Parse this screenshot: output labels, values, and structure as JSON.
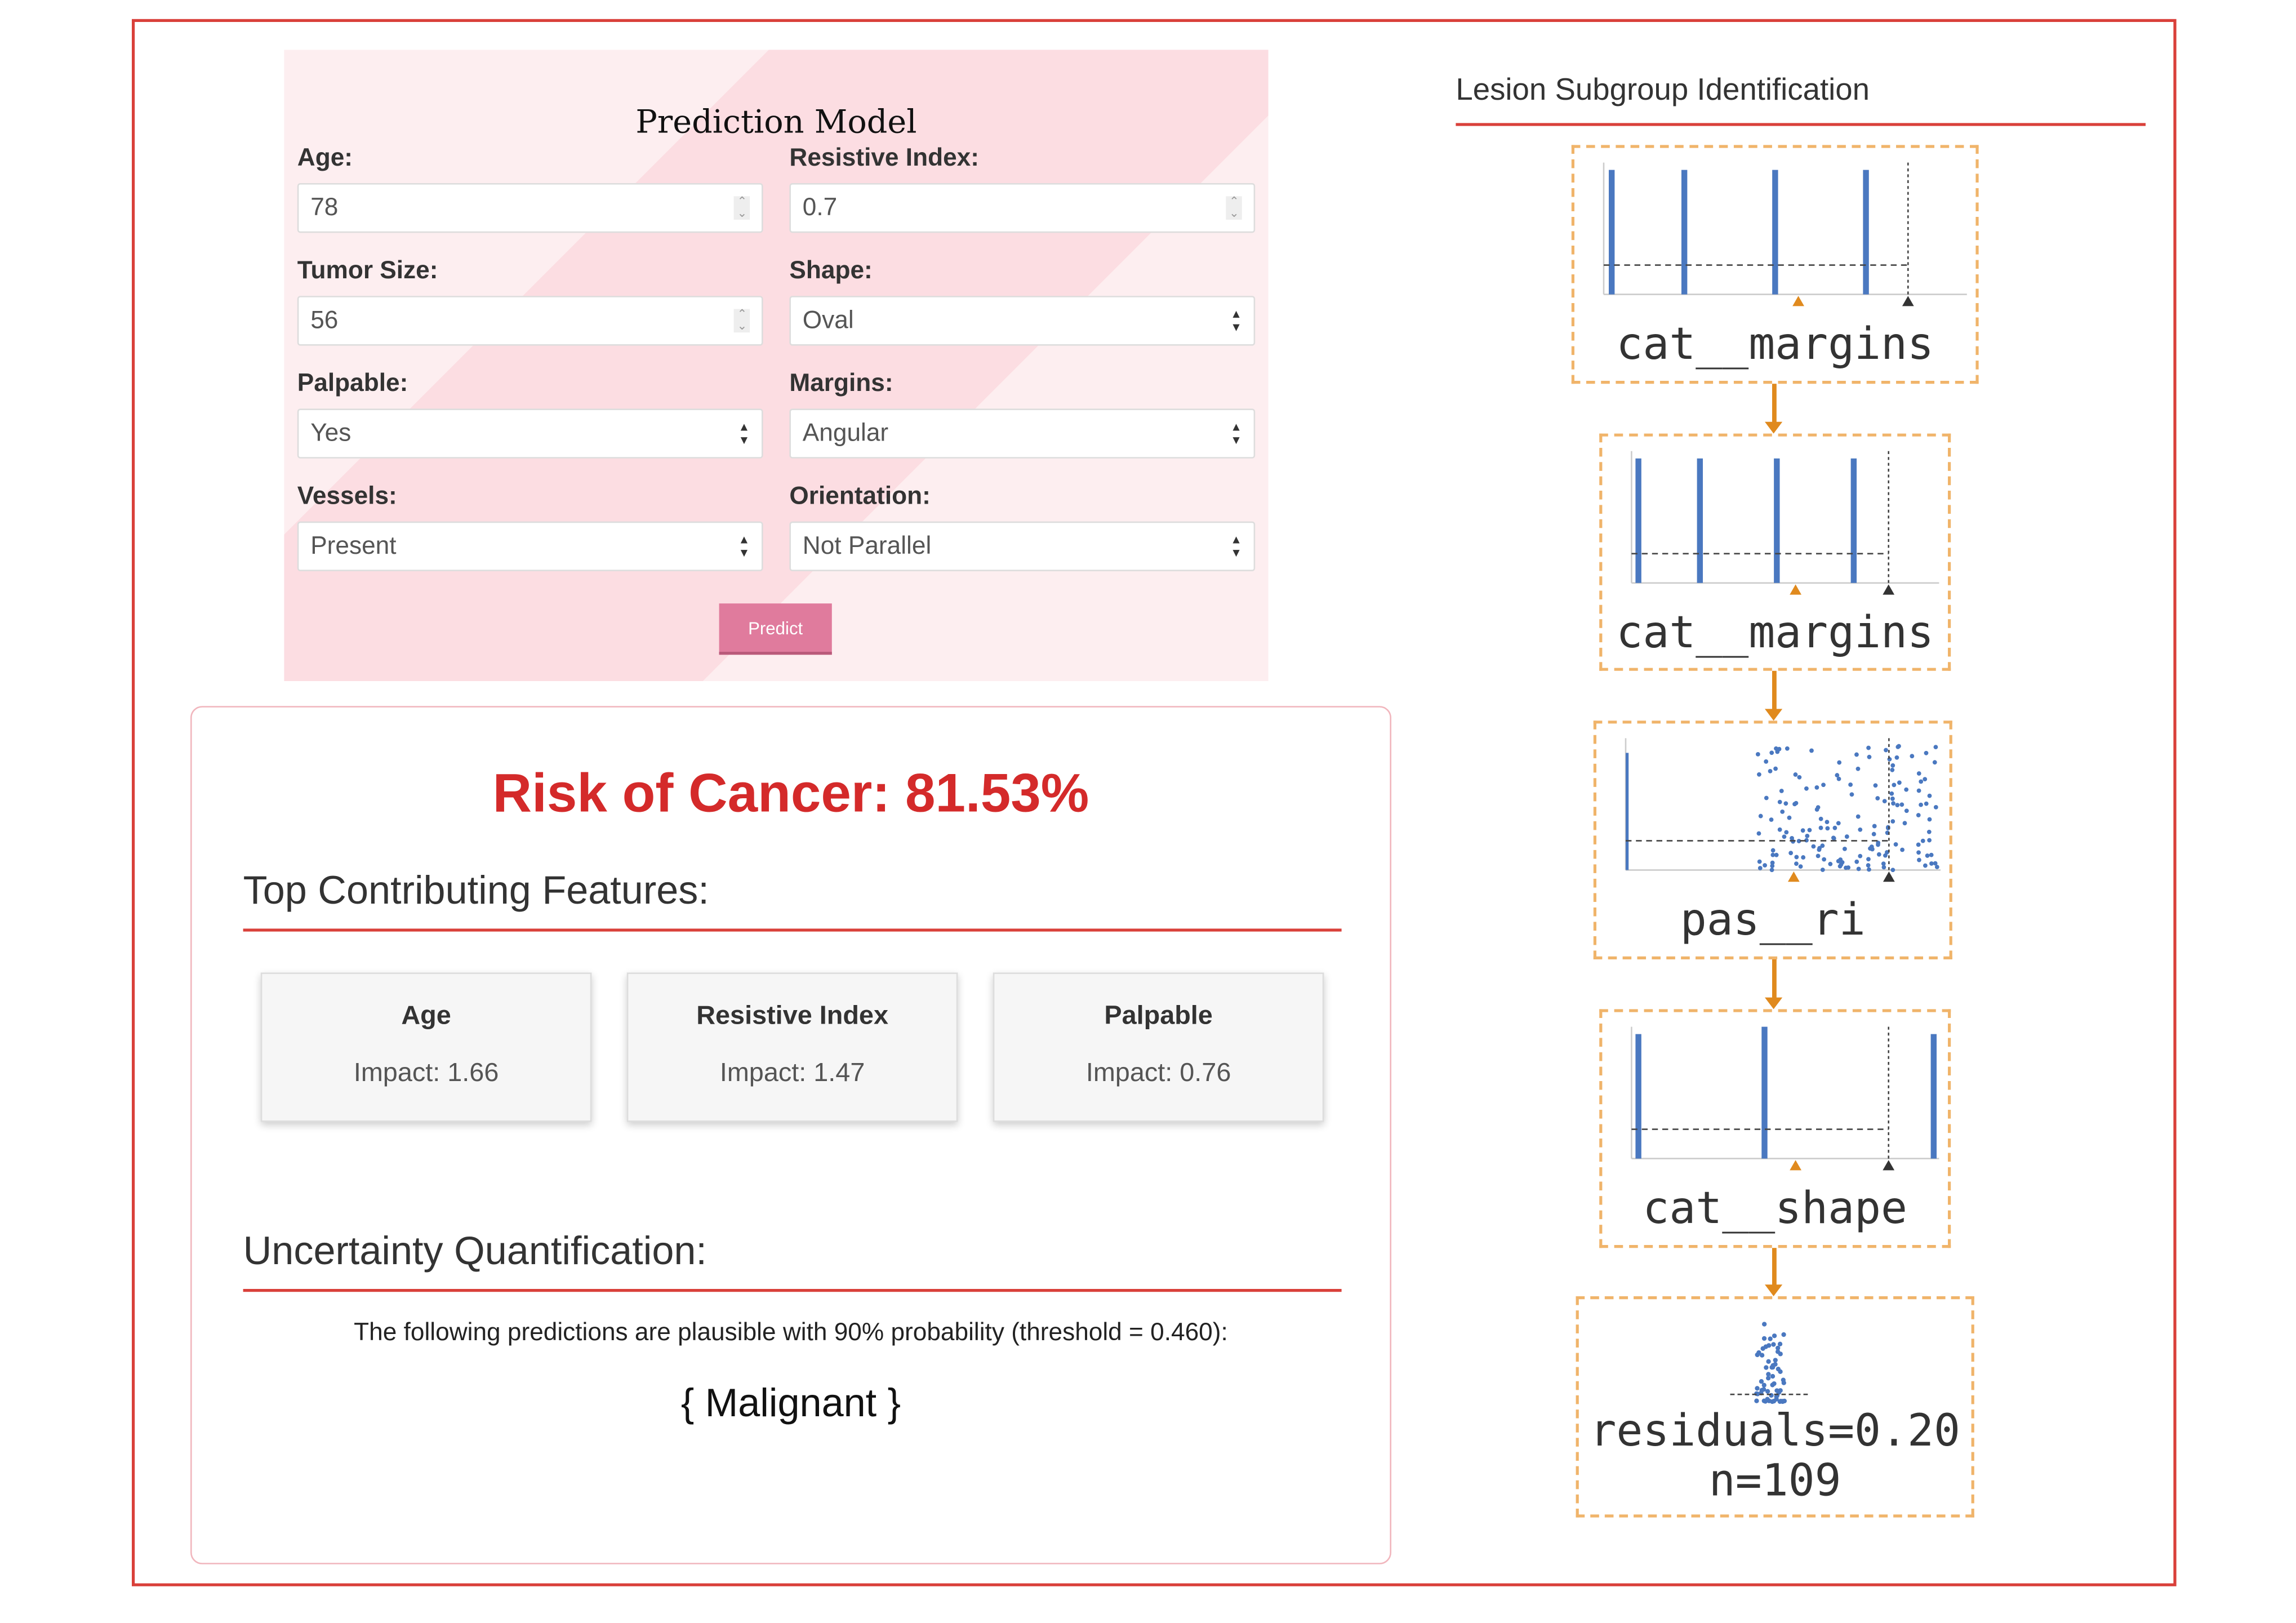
{
  "form": {
    "title": "Prediction Model",
    "fields": [
      {
        "label": "Age:",
        "value": "78",
        "type": "number"
      },
      {
        "label": "Resistive Index:",
        "value": "0.7",
        "type": "number"
      },
      {
        "label": "Tumor Size:",
        "value": "56",
        "type": "number"
      },
      {
        "label": "Shape:",
        "value": "Oval",
        "type": "select"
      },
      {
        "label": "Palpable:",
        "value": "Yes",
        "type": "select"
      },
      {
        "label": "Margins:",
        "value": "Angular",
        "type": "select"
      },
      {
        "label": "Vessels:",
        "value": "Present",
        "type": "select"
      },
      {
        "label": "Orientation:",
        "value": "Not Parallel",
        "type": "select"
      }
    ],
    "predict_label": "Predict"
  },
  "result": {
    "risk": "Risk of Cancer: 81.53%",
    "features_heading": "Top Contributing Features:",
    "features": [
      {
        "name": "Age",
        "impact": "Impact: 1.66"
      },
      {
        "name": "Resistive Index",
        "impact": "Impact: 1.47"
      },
      {
        "name": "Palpable",
        "impact": "Impact: 0.76"
      }
    ],
    "uncertainty_heading": "Uncertainty Quantification:",
    "uncertainty_text": "The following predictions are plausible with 90% probability (threshold = 0.460):",
    "prediction_set": "{ Malignant }"
  },
  "tree": {
    "title": "Lesion Subgroup Identification",
    "nodes": [
      {
        "label": "cat__margins"
      },
      {
        "label": "cat__margins"
      },
      {
        "label": "pas__ri"
      },
      {
        "label": "cat__shape"
      },
      {
        "label": "residuals=0.20",
        "label2": "n=109"
      }
    ],
    "colors": {
      "points": "#4a78c0",
      "split": "#e08a1e",
      "border": "#f0b46a"
    }
  }
}
